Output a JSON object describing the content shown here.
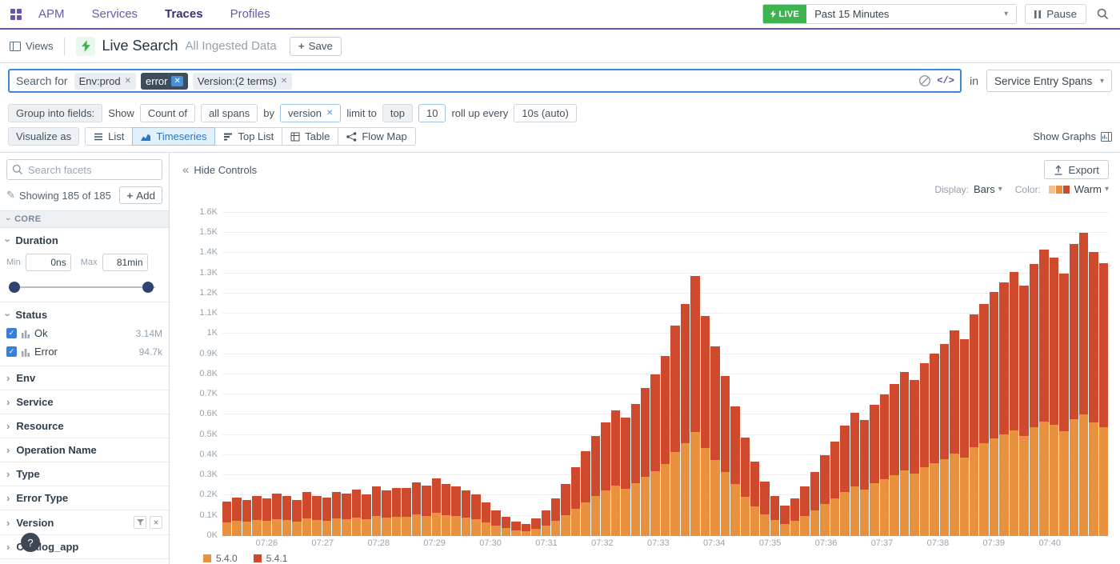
{
  "nav": {
    "items": [
      {
        "label": "APM",
        "active": false
      },
      {
        "label": "Services",
        "active": false
      },
      {
        "label": "Traces",
        "active": true
      },
      {
        "label": "Profiles",
        "active": false
      }
    ],
    "live_badge": "LIVE",
    "time_range": "Past 15 Minutes",
    "pause_label": "Pause"
  },
  "header": {
    "views_label": "Views",
    "title": "Live Search",
    "subtitle": "All Ingested Data",
    "save_label": "Save"
  },
  "search": {
    "prefix": "Search for",
    "tags": [
      {
        "label": "Env:prod",
        "style": "light"
      },
      {
        "label": "error",
        "style": "dark"
      },
      {
        "label": "Version:(2 terms)",
        "style": "light"
      }
    ],
    "scope_label": "in",
    "scope_value": "Service Entry Spans"
  },
  "controls": {
    "group_label": "Group into fields:",
    "show_label": "Show",
    "count_of": "Count of",
    "all_spans": "all spans",
    "by_label": "by",
    "by_value": "version",
    "limit_label": "limit to",
    "limit_mode": "top",
    "limit_value": "10",
    "rollup_label": "roll up every",
    "rollup_value": "10s (auto)",
    "visualize_label": "Visualize as",
    "viz_options": [
      {
        "label": "List",
        "active": false
      },
      {
        "label": "Timeseries",
        "active": true
      },
      {
        "label": "Top List",
        "active": false
      },
      {
        "label": "Table",
        "active": false
      },
      {
        "label": "Flow Map",
        "active": false
      }
    ],
    "show_graphs": "Show Graphs"
  },
  "sidebar": {
    "facet_search_placeholder": "Search facets",
    "showing": "Showing 185 of 185",
    "add_label": "Add",
    "section": "CORE",
    "duration": {
      "label": "Duration",
      "min_label": "Min",
      "max_label": "Max",
      "min_value": "0ns",
      "max_value": "81min"
    },
    "status": {
      "label": "Status",
      "items": [
        {
          "label": "Ok",
          "count": "3.14M",
          "checked": true
        },
        {
          "label": "Error",
          "count": "94.7k",
          "checked": true
        }
      ]
    },
    "facets": [
      {
        "label": "Env"
      },
      {
        "label": "Service"
      },
      {
        "label": "Resource"
      },
      {
        "label": "Operation Name"
      },
      {
        "label": "Type"
      },
      {
        "label": "Error Type"
      },
      {
        "label": "Version",
        "has_controls": true
      },
      {
        "label": "Catalog_app"
      }
    ]
  },
  "toolbar": {
    "hide_controls": "Hide Controls",
    "export_label": "Export",
    "display_label": "Display:",
    "display_value": "Bars",
    "color_label": "Color:",
    "color_value": "Warm"
  },
  "colors": {
    "accent_blue": "#2c77c9",
    "nav_purple": "#6456b8",
    "live_green": "#3fb34f",
    "search_border_blue": "#3f87d6"
  },
  "chart_data": {
    "type": "bar",
    "stacked": true,
    "title": "",
    "xlabel": "",
    "ylabel": "",
    "ylim": [
      0,
      1600
    ],
    "grid": true,
    "legend_position": "bottom",
    "x_labels": [
      "07:26",
      "07:27",
      "07:28",
      "07:29",
      "07:30",
      "07:31",
      "07:32",
      "07:33",
      "07:34",
      "07:35",
      "07:36",
      "07:37",
      "07:38",
      "07:39",
      "07:40"
    ],
    "y_ticks": [
      "0K",
      "0.1K",
      "0.2K",
      "0.3K",
      "0.4K",
      "0.5K",
      "0.6K",
      "0.7K",
      "0.8K",
      "0.9K",
      "1K",
      "1.1K",
      "1.2K",
      "1.3K",
      "1.4K",
      "1.5K",
      "1.6K"
    ],
    "bucket_seconds": 10,
    "series": [
      {
        "name": "5.4.0",
        "color": "#e8923f",
        "values": [
          68,
          76,
          72,
          80,
          74,
          84,
          78,
          72,
          86,
          80,
          76,
          88,
          84,
          92,
          82,
          98,
          90,
          96,
          94,
          106,
          100,
          114,
          104,
          98,
          90,
          82,
          66,
          50,
          38,
          28,
          24,
          34,
          50,
          74,
          104,
          136,
          168,
          198,
          224,
          248,
          234,
          262,
          292,
          320,
          356,
          416,
          460,
          516,
          436,
          376,
          316,
          256,
          196,
          148,
          108,
          78,
          60,
          74,
          98,
          128,
          160,
          188,
          218,
          244,
          230,
          260,
          280,
          302,
          326,
          310,
          342,
          362,
          380,
          406,
          390,
          438,
          460,
          482,
          502,
          522,
          496,
          538,
          568,
          552,
          520,
          578,
          600,
          562,
          540
        ]
      },
      {
        "name": "5.4.1",
        "color": "#cf4a2d",
        "values": [
          102,
          114,
          108,
          120,
          111,
          126,
          117,
          108,
          129,
          120,
          114,
          132,
          126,
          138,
          123,
          147,
          135,
          144,
          141,
          159,
          150,
          171,
          156,
          147,
          135,
          123,
          99,
          75,
          57,
          42,
          36,
          51,
          75,
          111,
          156,
          204,
          252,
          297,
          336,
          372,
          351,
          393,
          438,
          480,
          534,
          624,
          690,
          774,
          654,
          564,
          474,
          384,
          294,
          222,
          162,
          117,
          90,
          111,
          147,
          192,
          240,
          282,
          327,
          366,
          345,
          390,
          420,
          453,
          489,
          465,
          513,
          543,
          570,
          609,
          585,
          657,
          690,
          723,
          753,
          783,
          744,
          807,
          852,
          828,
          780,
          867,
          900,
          843,
          810
        ]
      }
    ]
  }
}
